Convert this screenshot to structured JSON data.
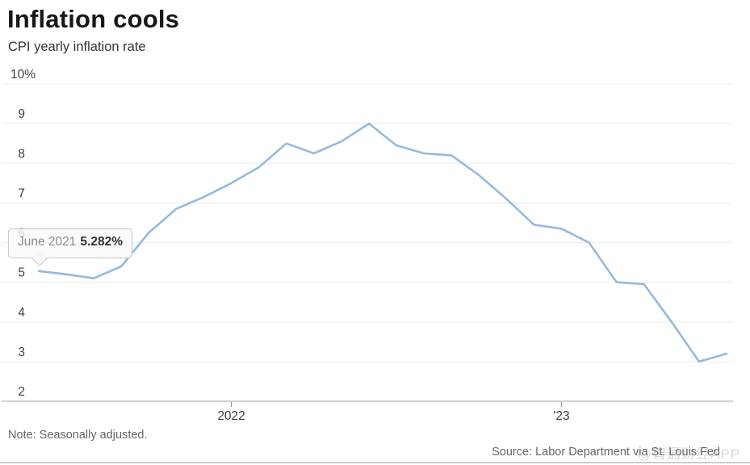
{
  "header": {
    "title": "Inflation cools",
    "subtitle": "CPI yearly inflation rate"
  },
  "chart_data": {
    "type": "line",
    "title": "Inflation cools",
    "subtitle": "CPI yearly inflation rate",
    "series_name": "CPI yearly inflation rate",
    "unit": "%",
    "x": [
      "Jun 2021",
      "Jul 2021",
      "Aug 2021",
      "Sep 2021",
      "Oct 2021",
      "Nov 2021",
      "Dec 2021",
      "Jan 2022",
      "Feb 2022",
      "Mar 2022",
      "Apr 2022",
      "May 2022",
      "Jun 2022",
      "Jul 2022",
      "Aug 2022",
      "Sep 2022",
      "Oct 2022",
      "Nov 2022",
      "Dec 2022",
      "Jan 2023",
      "Feb 2023",
      "Mar 2023",
      "Apr 2023",
      "May 2023",
      "Jun 2023",
      "Jul 2023"
    ],
    "values": [
      5.282,
      5.2,
      5.1,
      5.4,
      6.25,
      6.85,
      7.15,
      7.5,
      7.9,
      8.5,
      8.25,
      8.55,
      9.0,
      8.45,
      8.25,
      8.2,
      7.7,
      7.1,
      6.45,
      6.35,
      6.0,
      5.0,
      4.95,
      4.0,
      3.0,
      3.2
    ],
    "ylim": [
      2,
      10
    ],
    "y_ticks": [
      {
        "value": 10,
        "label": "10%"
      },
      {
        "value": 9,
        "label": "9"
      },
      {
        "value": 8,
        "label": "8"
      },
      {
        "value": 7,
        "label": "7"
      },
      {
        "value": 6,
        "label": "6"
      },
      {
        "value": 5,
        "label": "5"
      },
      {
        "value": 4,
        "label": "4"
      },
      {
        "value": 3,
        "label": "3"
      },
      {
        "value": 2,
        "label": "2"
      }
    ],
    "x_ticks": [
      {
        "x_index": 7,
        "label": "2022"
      },
      {
        "x_index": 19,
        "label": "'23"
      }
    ],
    "grid": "horizontal",
    "legend": "none",
    "colors": {
      "line": "#94bade",
      "gridline": "#ececec",
      "axis_line": "#cccccc",
      "tick_mark": "#999999",
      "tick_label": "#3f3f3f"
    }
  },
  "tooltip": {
    "date": "June 2021",
    "value": "5.282%"
  },
  "footer": {
    "note": "Note: Seasonally adjusted.",
    "source": "Source: Labor Department via St. Louis Fed"
  },
  "watermark": "@智通财经APP"
}
